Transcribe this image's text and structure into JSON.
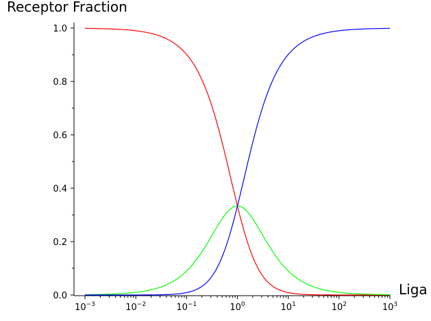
{
  "chart_data": {
    "type": "line",
    "title": "",
    "ylabel": "Receptor Fraction",
    "xlabel": "Liga",
    "xscale": "log",
    "xlim": [
      0.001,
      1000
    ],
    "ylim": [
      0,
      1.0
    ],
    "grid": false,
    "legend": "none",
    "x_ticks": [
      {
        "value": 0.001,
        "base": "10",
        "exp": "−3"
      },
      {
        "value": 0.01,
        "base": "10",
        "exp": "−2"
      },
      {
        "value": 0.1,
        "base": "10",
        "exp": "−1"
      },
      {
        "value": 1,
        "base": "10",
        "exp": "0"
      },
      {
        "value": 10,
        "base": "10",
        "exp": "1"
      },
      {
        "value": 100,
        "base": "10",
        "exp": "2"
      },
      {
        "value": 1000,
        "base": "10",
        "exp": "3"
      }
    ],
    "y_ticks": [
      {
        "value": 0.0,
        "label": "0.0"
      },
      {
        "value": 0.2,
        "label": "0.2"
      },
      {
        "value": 0.4,
        "label": "0.4"
      },
      {
        "value": 0.6,
        "label": "0.6"
      },
      {
        "value": 0.8,
        "label": "0.8"
      },
      {
        "value": 1.0,
        "label": "1.0"
      }
    ],
    "series": [
      {
        "color": "#ff0000",
        "x": [
          0.001,
          0.00316,
          0.01,
          0.0316,
          0.1,
          0.2,
          0.316,
          0.5,
          0.7,
          1,
          1.5,
          2,
          3.16,
          5,
          10,
          31.6,
          100,
          316,
          1000
        ],
        "y": [
          0.998,
          0.994,
          0.98,
          0.939,
          0.826,
          0.694,
          0.578,
          0.444,
          0.346,
          0.333,
          0.16,
          0.111,
          0.058,
          0.028,
          0.008,
          0.001,
          0.0001,
          0.0,
          0.0
        ]
      },
      {
        "color": "#00ff00",
        "x": [
          0.001,
          0.00316,
          0.01,
          0.0316,
          0.1,
          0.2,
          0.316,
          0.5,
          0.7,
          1,
          1.5,
          2,
          3.16,
          5,
          10,
          31.6,
          100,
          316,
          1000
        ],
        "y": [
          0.002,
          0.006,
          0.02,
          0.059,
          0.165,
          0.278,
          0.183,
          0.222,
          0.328,
          0.333,
          0.24,
          0.222,
          0.183,
          0.139,
          0.083,
          0.029,
          0.01,
          0.003,
          0.001
        ]
      },
      {
        "color": "#0000ff",
        "x": [
          0.001,
          0.00316,
          0.01,
          0.0316,
          0.1,
          0.2,
          0.316,
          0.5,
          0.7,
          1,
          1.5,
          2,
          3.16,
          5,
          10,
          31.6,
          100,
          316,
          1000
        ],
        "y": [
          0.0,
          0.0,
          0.0001,
          0.002,
          0.008,
          0.028,
          0.058,
          0.111,
          0.16,
          0.333,
          0.36,
          0.444,
          0.578,
          0.694,
          0.826,
          0.939,
          0.98,
          0.994,
          0.998
        ]
      }
    ]
  }
}
